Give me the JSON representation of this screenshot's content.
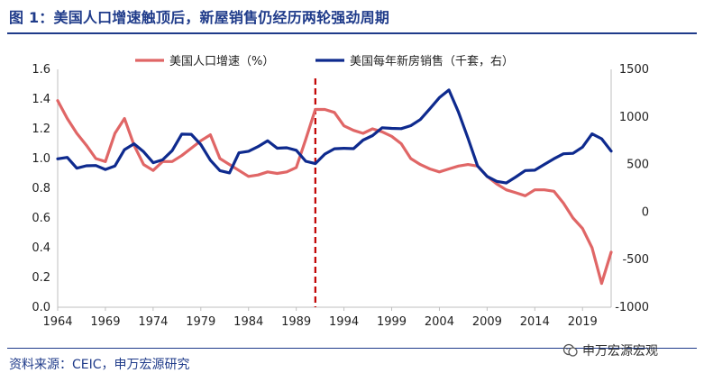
{
  "figure_title": "图 1：美国人口增速触顶后，新屋销售仍经历两轮强劲周期",
  "source": "资料来源：CEIC，申万宏源研究",
  "watermark": "申万宏源宏观",
  "icon": "wechat-icon",
  "colors": {
    "title": "#1f3b8a",
    "population": "#e06666",
    "sales": "#0e2a8e",
    "marker": "#c00000"
  },
  "chart_data": {
    "type": "line",
    "title": "",
    "x": [
      1964,
      1965,
      1966,
      1967,
      1968,
      1969,
      1970,
      1971,
      1972,
      1973,
      1974,
      1975,
      1976,
      1977,
      1978,
      1979,
      1980,
      1981,
      1982,
      1983,
      1984,
      1985,
      1986,
      1987,
      1988,
      1989,
      1990,
      1991,
      1992,
      1993,
      1994,
      1995,
      1996,
      1997,
      1998,
      1999,
      2000,
      2001,
      2002,
      2003,
      2004,
      2005,
      2006,
      2007,
      2008,
      2009,
      2010,
      2011,
      2012,
      2013,
      2014,
      2015,
      2016,
      2017,
      2018,
      2019,
      2020,
      2021,
      2022
    ],
    "x_ticks": [
      1964,
      1969,
      1974,
      1979,
      1984,
      1989,
      1994,
      1999,
      2004,
      2009,
      2014,
      2019
    ],
    "y_left": {
      "range": [
        0,
        1.6
      ],
      "ticks": [
        "0.0",
        "0.2",
        "0.4",
        "0.6",
        "0.8",
        "1.0",
        "1.2",
        "1.4",
        "1.6"
      ]
    },
    "y_right": {
      "range": [
        -1000,
        1500
      ],
      "ticks": [
        "-1000",
        "-500",
        "0",
        "500",
        "1000",
        "1500"
      ]
    },
    "legend_position": "top",
    "grid": false,
    "vertical_marker_year": 1991,
    "series": [
      {
        "name": "美国人口增速（%）",
        "axis": "left",
        "color": "#e06666",
        "values": [
          1.39,
          1.27,
          1.17,
          1.09,
          1.0,
          0.98,
          1.17,
          1.27,
          1.09,
          0.96,
          0.92,
          0.98,
          0.98,
          1.02,
          1.07,
          1.12,
          1.16,
          1.0,
          0.96,
          0.92,
          0.88,
          0.89,
          0.91,
          0.9,
          0.91,
          0.94,
          1.13,
          1.33,
          1.33,
          1.31,
          1.22,
          1.19,
          1.17,
          1.2,
          1.18,
          1.15,
          1.1,
          1.0,
          0.96,
          0.93,
          0.91,
          0.93,
          0.95,
          0.96,
          0.95,
          0.88,
          0.83,
          0.79,
          0.77,
          0.75,
          0.79,
          0.79,
          0.78,
          0.7,
          0.6,
          0.53,
          0.4,
          0.16,
          0.37
        ]
      },
      {
        "name": "美国每年新房销售（千套，右）",
        "axis": "right",
        "color": "#0e2a8e",
        "values": [
          560,
          575,
          461,
          487,
          490,
          448,
          485,
          656,
          718,
          634,
          519,
          549,
          646,
          819,
          817,
          709,
          545,
          436,
          412,
          623,
          639,
          688,
          750,
          671,
          676,
          650,
          534,
          509,
          610,
          666,
          670,
          667,
          757,
          804,
          886,
          880,
          877,
          908,
          973,
          1086,
          1203,
          1283,
          1051,
          776,
          485,
          375,
          323,
          306,
          368,
          437,
          440,
          501,
          561,
          613,
          617,
          683,
          822,
          771,
          641
        ]
      }
    ]
  }
}
